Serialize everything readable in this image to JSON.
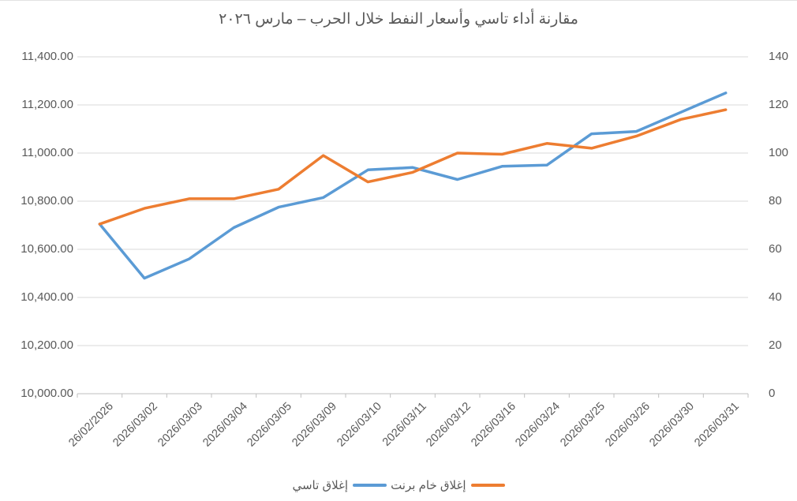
{
  "chart_data": {
    "type": "line",
    "title": "مقارنة أداء تاسي وأسعار النفط خلال الحرب – مارس ٢٠٢٦",
    "categories": [
      "26/02/2026",
      "2026/03/02",
      "2026/03/03",
      "2026/03/04",
      "2026/03/05",
      "2026/03/09",
      "2026/03/10",
      "2026/03/11",
      "2026/03/12",
      "2026/03/16",
      "2026/03/24",
      "2026/03/25",
      "2026/03/26",
      "2026/03/30",
      "2026/03/31"
    ],
    "series": [
      {
        "name": "إغلاق تاسي",
        "axis": "left",
        "color": "#5B9BD5",
        "values": [
          10705,
          10480,
          10560,
          10690,
          10775,
          10815,
          10930,
          10940,
          10890,
          10945,
          10950,
          11080,
          11090,
          11170,
          11250
        ]
      },
      {
        "name": "إغلاق خام برنت",
        "axis": "right",
        "color": "#ED7D31",
        "values": [
          70.5,
          77,
          81,
          81,
          85,
          99,
          88,
          92,
          100,
          99.5,
          104,
          102,
          107,
          114,
          118
        ]
      }
    ],
    "left_axis": {
      "min": 10000,
      "max": 11400,
      "step": 200,
      "labels": [
        "11,400.00",
        "11,200.00",
        "11,000.00",
        "10,800.00",
        "10,600.00",
        "10,400.00",
        "10,200.00",
        "10,000.00"
      ]
    },
    "right_axis": {
      "min": 0,
      "max": 140,
      "step": 20,
      "labels": [
        "140",
        "120",
        "100",
        "80",
        "60",
        "40",
        "20",
        "0"
      ]
    },
    "grid": true,
    "legend_position": "bottom"
  },
  "legend": {
    "items": [
      {
        "label": "إغلاق تاسي",
        "color": "#5B9BD5"
      },
      {
        "label": "إغلاق خام برنت",
        "color": "#ED7D31"
      }
    ]
  },
  "colors": {
    "tasi_line": "#5B9BD5",
    "brent_line": "#ED7D31",
    "gridline": "#D9D9D9",
    "axis_line": "#BFBFBF",
    "tick": "#BFBFBF",
    "label_text": "#595959",
    "title_text": "#595959",
    "background": "#FFFFFF"
  }
}
